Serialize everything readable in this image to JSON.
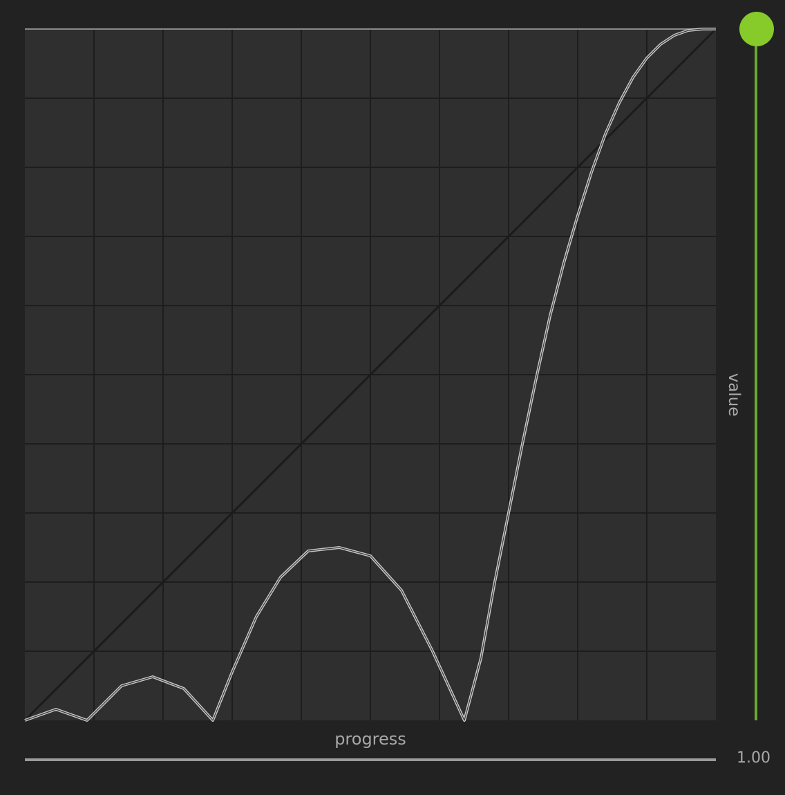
{
  "chart_data": {
    "type": "line",
    "xlabel": "progress",
    "ylabel": "value",
    "xlim": [
      0,
      1
    ],
    "ylim": [
      0,
      1
    ],
    "grid": true,
    "grid_divisions": 10,
    "series": [
      {
        "role": "reference-linear",
        "x": [
          0,
          1
        ],
        "y": [
          0,
          1
        ]
      },
      {
        "role": "easing-curve",
        "x": [
          0.0,
          0.045,
          0.09,
          0.14,
          0.185,
          0.23,
          0.272,
          0.3,
          0.335,
          0.37,
          0.41,
          0.455,
          0.5,
          0.545,
          0.59,
          0.636,
          0.66,
          0.68,
          0.7,
          0.72,
          0.74,
          0.76,
          0.78,
          0.8,
          0.82,
          0.84,
          0.86,
          0.88,
          0.9,
          0.92,
          0.94,
          0.96,
          0.98,
          1.0
        ],
        "y": [
          0.0,
          0.016,
          0.0,
          0.05,
          0.063,
          0.046,
          0.0,
          0.07,
          0.15,
          0.207,
          0.245,
          0.25,
          0.238,
          0.188,
          0.1,
          0.0,
          0.09,
          0.2,
          0.3,
          0.4,
          0.495,
          0.585,
          0.662,
          0.73,
          0.793,
          0.848,
          0.893,
          0.93,
          0.958,
          0.978,
          0.991,
          0.998,
          1.0,
          1.0
        ]
      }
    ]
  },
  "controls": {
    "progress": 1.0,
    "progress_readout": "1.00",
    "value": 1.0
  },
  "colors": {
    "background": "#222222",
    "plot_background": "#2f2f2f",
    "grid": "#1d1d1d",
    "border_top": "#8a8a8a",
    "curve_outer": "#c8c8c8",
    "curve_inner": "#3a3a3a",
    "reference_line": "#1b1b1b",
    "accent": "#86cb2a",
    "accent_track": "#6aa833",
    "muted_text": "#a8a8a8"
  }
}
